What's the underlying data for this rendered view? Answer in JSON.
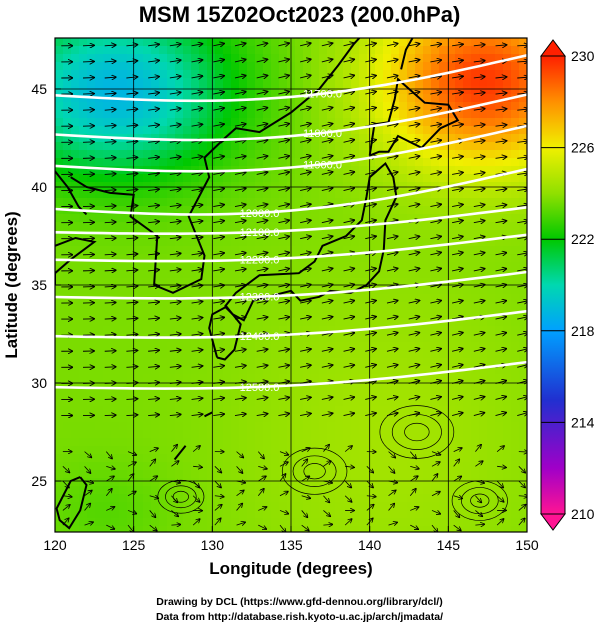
{
  "title": "MSM 15Z02Oct2023 (200.0hPa)",
  "axes": {
    "xlabel": "Longitude (degrees)",
    "ylabel": "Latitude  (degrees)",
    "x_ticks": [
      "120",
      "125",
      "130",
      "135",
      "140",
      "145",
      "150"
    ],
    "y_ticks": [
      "25",
      "30",
      "35",
      "40",
      "45"
    ],
    "x_range": [
      120,
      150
    ],
    "y_range": [
      22.4,
      47.6
    ]
  },
  "colorbar": {
    "ticks": [
      "230",
      "226",
      "222",
      "218",
      "214",
      "210"
    ],
    "range": [
      210,
      230
    ],
    "colors": [
      "#ff1493",
      "#a000c8",
      "#2030d0",
      "#00a0ff",
      "#00d8b0",
      "#00c800",
      "#90e000",
      "#f0f000",
      "#ff9000",
      "#ff2000"
    ]
  },
  "contours": [
    {
      "label": "11700.0",
      "lat": 45.8
    },
    {
      "label": "11800.0",
      "lat": 43.8
    },
    {
      "label": "11900.0",
      "lat": 42.2
    },
    {
      "label": "12000.0",
      "lat": 40.0
    },
    {
      "label": "12100.0",
      "lat": 38.3
    },
    {
      "label": "12200.0",
      "lat": 36.9
    },
    {
      "label": "12300.0",
      "lat": 35.0
    },
    {
      "label": "12400.0",
      "lat": 33.0
    },
    {
      "label": "12500.0",
      "lat": 30.4
    }
  ],
  "credits": {
    "line1": "Drawing by DCL (https://www.gfd-dennou.org/library/dcl/)",
    "line2": "Data from http://database.rish.kyoto-u.ac.jp/arch/jmadata/"
  }
}
